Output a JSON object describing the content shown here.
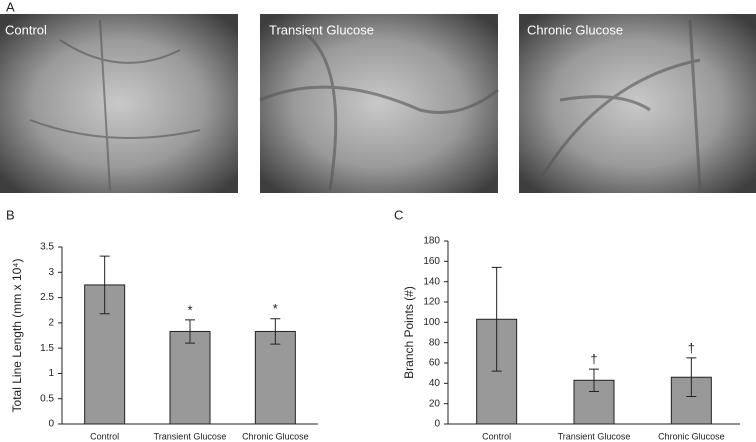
{
  "figure": {
    "panel_labels": [
      "A",
      "B",
      "C"
    ],
    "images": [
      "Control",
      "Transient Glucose",
      "Chronic Glucose"
    ]
  },
  "chart_data": [
    {
      "type": "bar",
      "y_label": "Total Line Length (mm x 10⁴)",
      "categories": [
        "Control",
        "Transient Glucose",
        "Chronic Glucose"
      ],
      "values": [
        2.75,
        1.83,
        1.83
      ],
      "errors": [
        0.57,
        0.23,
        0.25
      ],
      "value_annotations": [
        null,
        "*",
        "*"
      ],
      "color": "#999999",
      "ylim": [
        0,
        3.5
      ],
      "yticks": [
        0,
        0.5,
        1,
        1.5,
        2,
        2.5,
        3,
        3.5
      ]
    },
    {
      "type": "bar",
      "y_label": "Branch Points (#)",
      "categories": [
        "Control",
        "Transient Glucose",
        "Chronic Glucose"
      ],
      "values": [
        103,
        43,
        46
      ],
      "errors": [
        51,
        11,
        19
      ],
      "value_annotations": [
        null,
        "†",
        "†"
      ],
      "color": "#999999",
      "ylim": [
        0,
        180
      ],
      "yticks": [
        0,
        20,
        40,
        60,
        80,
        100,
        120,
        140,
        160,
        180
      ]
    }
  ]
}
